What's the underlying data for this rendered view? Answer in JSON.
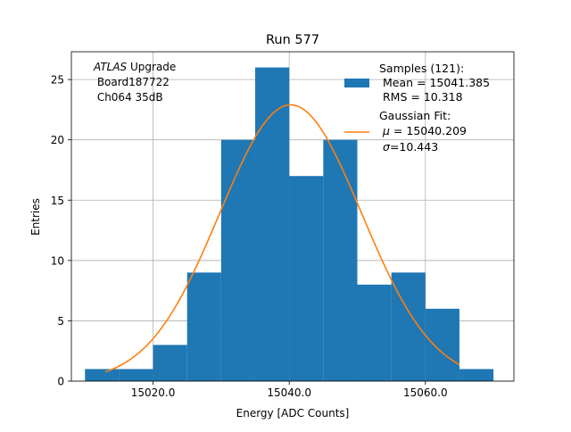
{
  "chart_data": {
    "type": "bar",
    "title": "Run 577",
    "xlabel": "Energy [ADC Counts]",
    "ylabel": "Entries",
    "xlim": [
      15008,
      15073
    ],
    "ylim": [
      0,
      27.3
    ],
    "grid": true,
    "xticks": [
      15020,
      15040,
      15060
    ],
    "xtick_labels": [
      "15020.0",
      "15040.0",
      "15060.0"
    ],
    "yticks": [
      0,
      5,
      10,
      15,
      20,
      25
    ],
    "ytick_labels": [
      "0",
      "5",
      "10",
      "15",
      "20",
      "25"
    ],
    "histogram": {
      "color": "#1f77b4",
      "bin_edges": [
        15010,
        15015,
        15020,
        15025,
        15030,
        15035,
        15040,
        15045,
        15050,
        15055,
        15060,
        15065,
        15070
      ],
      "counts": [
        1,
        1,
        3,
        9,
        20,
        26,
        17,
        20,
        8,
        9,
        6,
        1
      ]
    },
    "gaussian_fit": {
      "color": "#ff7f0e",
      "mu": 15040.209,
      "sigma": 10.443,
      "amplitude": 22.9,
      "x_range": [
        15013,
        15065
      ]
    },
    "annotation": {
      "line1_italic": "ATLAS",
      "line1_rest": " Upgrade",
      "line2": " Board187722",
      "line3": " Ch064 35dB"
    },
    "legend": {
      "placement": "top-right",
      "samples": {
        "line1": "Samples (121):",
        "line2": " Mean = 15041.385",
        "line3": " RMS = 10.318"
      },
      "fit": {
        "line1": "Gaussian Fit:",
        "line2_sym": "μ",
        "line2_rest": " = 15040.209",
        "line3_sym": "σ",
        "line3_rest": "=10.443"
      }
    }
  }
}
